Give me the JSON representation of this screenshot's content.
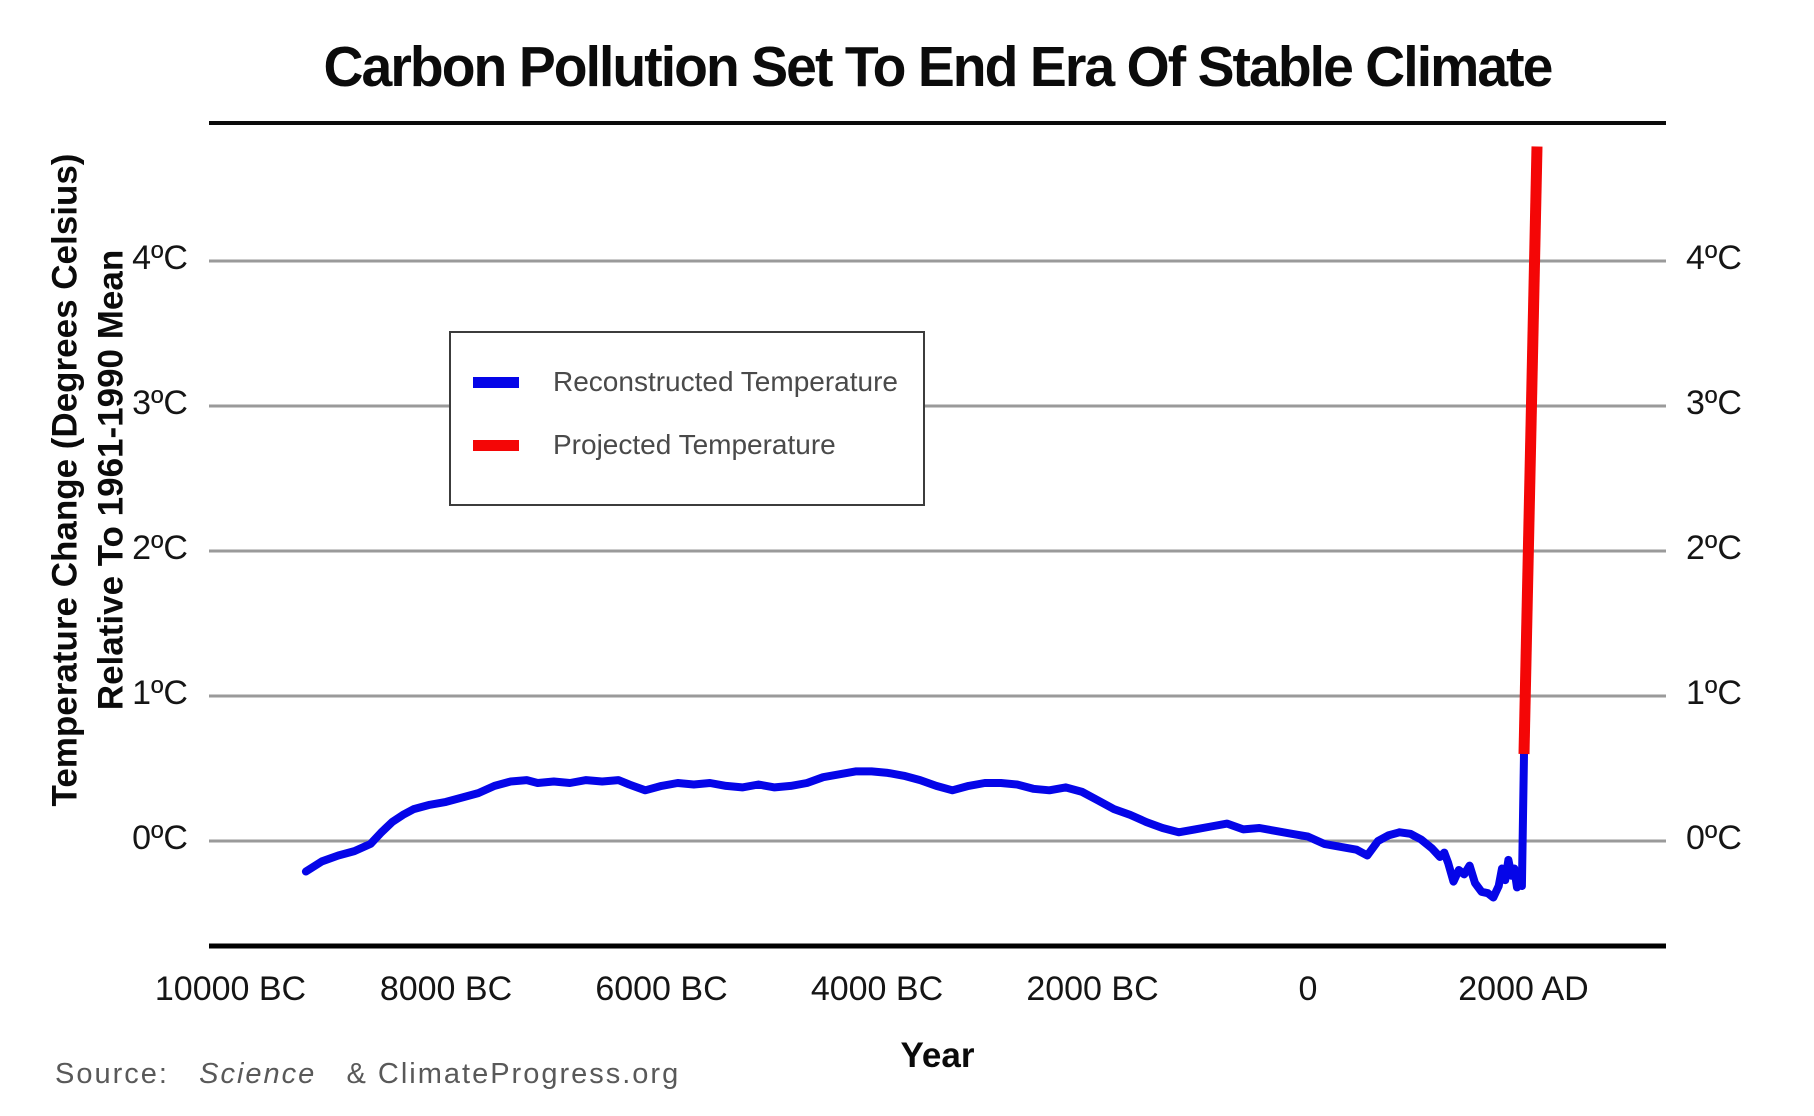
{
  "title": "Carbon Pollution Set To End Era Of Stable Climate",
  "legend": {
    "items": [
      {
        "label": "Reconstructed Temperature",
        "color": "#0505e8"
      },
      {
        "label": "Projected Temperature",
        "color": "#f40606"
      }
    ]
  },
  "axes": {
    "y_title_line1": "Temperature Change (Degrees Celsius)",
    "y_title_line2": "Relative To 1961-1990 Mean",
    "x_title": "Year",
    "y_ticks": [
      {
        "value": 4,
        "label": "4ºC"
      },
      {
        "value": 3,
        "label": "3ºC"
      },
      {
        "value": 2,
        "label": "2ºC"
      },
      {
        "value": 1,
        "label": "1ºC"
      },
      {
        "value": 0,
        "label": "0ºC"
      }
    ],
    "x_ticks": [
      {
        "value": -10000,
        "label": "10000 BC"
      },
      {
        "value": -8000,
        "label": "8000 BC"
      },
      {
        "value": -6000,
        "label": "6000 BC"
      },
      {
        "value": -4000,
        "label": "4000 BC"
      },
      {
        "value": -2000,
        "label": "2000 BC"
      },
      {
        "value": 0,
        "label": "0"
      },
      {
        "value": 2000,
        "label": "2000 AD"
      }
    ]
  },
  "source": {
    "prefix": "Source:",
    "journal": "Science",
    "suffix": "& ClimateProgress.org"
  },
  "colors": {
    "reconstructed": "#0505e8",
    "projected": "#f40606",
    "gridline": "#9a9a9a",
    "axis": "#0b0b0b",
    "legend_border": "#3c3c3c"
  },
  "chart_data": {
    "type": "line",
    "title": "Carbon Pollution Set To End Era Of Stable Climate",
    "xlabel": "Year",
    "ylabel": "Temperature Change (Degrees Celsius) Relative To 1961-1990 Mean",
    "xlim": [
      -10200,
      3320
    ],
    "ylim": [
      -0.72,
      4.95
    ],
    "grid": "horizontal",
    "legend_position": "upper-left-box",
    "series": [
      {
        "name": "Reconstructed Temperature",
        "color": "#0505e8",
        "stroke_width": 8,
        "points": [
          [
            -9300,
            -0.21
          ],
          [
            -9150,
            -0.14
          ],
          [
            -9000,
            -0.1
          ],
          [
            -8850,
            -0.07
          ],
          [
            -8700,
            -0.02
          ],
          [
            -8600,
            0.06
          ],
          [
            -8500,
            0.13
          ],
          [
            -8400,
            0.18
          ],
          [
            -8300,
            0.22
          ],
          [
            -8150,
            0.25
          ],
          [
            -8000,
            0.27
          ],
          [
            -7850,
            0.3
          ],
          [
            -7700,
            0.33
          ],
          [
            -7550,
            0.38
          ],
          [
            -7400,
            0.41
          ],
          [
            -7250,
            0.42
          ],
          [
            -7150,
            0.4
          ],
          [
            -7000,
            0.41
          ],
          [
            -6850,
            0.4
          ],
          [
            -6700,
            0.42
          ],
          [
            -6550,
            0.41
          ],
          [
            -6400,
            0.42
          ],
          [
            -6300,
            0.39
          ],
          [
            -6150,
            0.35
          ],
          [
            -6000,
            0.38
          ],
          [
            -5850,
            0.4
          ],
          [
            -5700,
            0.39
          ],
          [
            -5550,
            0.4
          ],
          [
            -5400,
            0.38
          ],
          [
            -5250,
            0.37
          ],
          [
            -5100,
            0.39
          ],
          [
            -4950,
            0.37
          ],
          [
            -4800,
            0.38
          ],
          [
            -4650,
            0.4
          ],
          [
            -4500,
            0.44
          ],
          [
            -4350,
            0.46
          ],
          [
            -4200,
            0.48
          ],
          [
            -4050,
            0.48
          ],
          [
            -3900,
            0.47
          ],
          [
            -3750,
            0.45
          ],
          [
            -3600,
            0.42
          ],
          [
            -3450,
            0.38
          ],
          [
            -3300,
            0.35
          ],
          [
            -3150,
            0.38
          ],
          [
            -3000,
            0.4
          ],
          [
            -2850,
            0.4
          ],
          [
            -2700,
            0.39
          ],
          [
            -2550,
            0.36
          ],
          [
            -2400,
            0.35
          ],
          [
            -2250,
            0.37
          ],
          [
            -2100,
            0.34
          ],
          [
            -1950,
            0.28
          ],
          [
            -1800,
            0.22
          ],
          [
            -1650,
            0.18
          ],
          [
            -1500,
            0.13
          ],
          [
            -1350,
            0.09
          ],
          [
            -1200,
            0.06
          ],
          [
            -1050,
            0.08
          ],
          [
            -900,
            0.1
          ],
          [
            -750,
            0.12
          ],
          [
            -600,
            0.08
          ],
          [
            -450,
            0.09
          ],
          [
            -300,
            0.07
          ],
          [
            -150,
            0.05
          ],
          [
            0,
            0.03
          ],
          [
            150,
            -0.02
          ],
          [
            300,
            -0.04
          ],
          [
            450,
            -0.06
          ],
          [
            550,
            -0.1
          ],
          [
            650,
            0.0
          ],
          [
            750,
            0.04
          ],
          [
            850,
            0.06
          ],
          [
            950,
            0.05
          ],
          [
            1050,
            0.01
          ],
          [
            1150,
            -0.05
          ],
          [
            1225,
            -0.11
          ],
          [
            1265,
            -0.08
          ],
          [
            1300,
            -0.15
          ],
          [
            1350,
            -0.28
          ],
          [
            1400,
            -0.2
          ],
          [
            1450,
            -0.23
          ],
          [
            1500,
            -0.17
          ],
          [
            1550,
            -0.29
          ],
          [
            1610,
            -0.35
          ],
          [
            1670,
            -0.36
          ],
          [
            1720,
            -0.39
          ],
          [
            1770,
            -0.31
          ],
          [
            1800,
            -0.19
          ],
          [
            1830,
            -0.27
          ],
          [
            1860,
            -0.13
          ],
          [
            1890,
            -0.24
          ],
          [
            1915,
            -0.19
          ],
          [
            1940,
            -0.32
          ],
          [
            1960,
            -0.26
          ],
          [
            1985,
            -0.31
          ],
          [
            2005,
            0.6
          ]
        ]
      },
      {
        "name": "Projected Temperature",
        "color": "#f40606",
        "stroke_width": 11,
        "points": [
          [
            2005,
            0.6
          ],
          [
            2125,
            4.79
          ]
        ]
      }
    ]
  }
}
